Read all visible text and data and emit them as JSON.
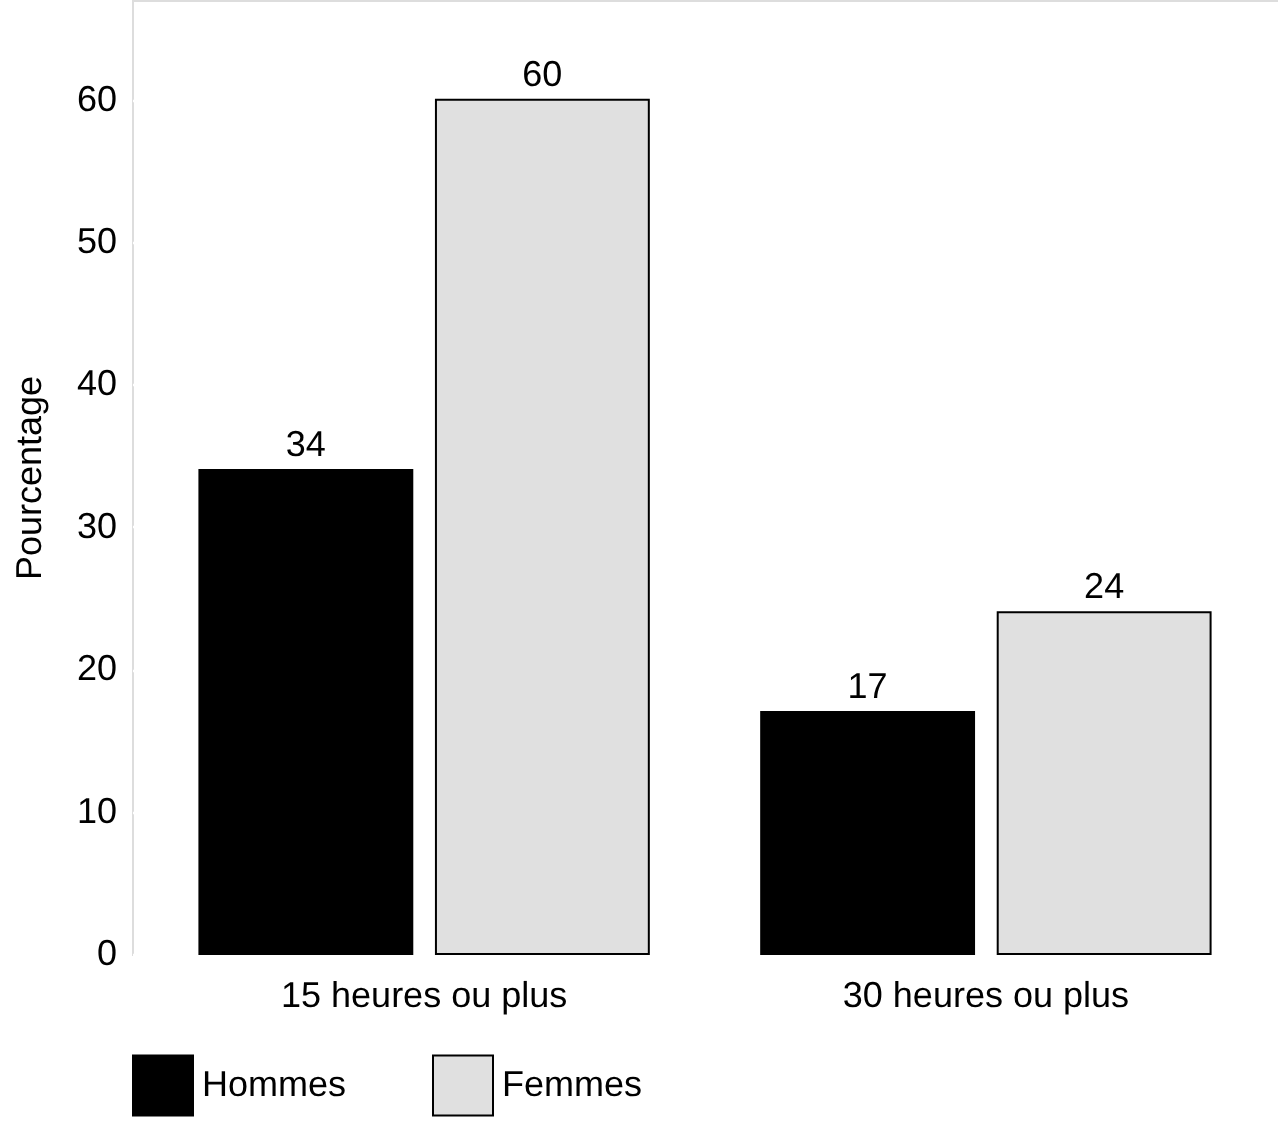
{
  "chart_data": {
    "type": "bar",
    "ylabel": "Pourcentage",
    "categories": [
      "15 heures ou plus",
      "30 heures ou plus"
    ],
    "series": [
      {
        "name": "Hommes",
        "color": "#000000",
        "values": [
          34,
          17
        ]
      },
      {
        "name": "Femmes",
        "color": "#e0e0e0",
        "values": [
          60,
          24
        ]
      }
    ],
    "ylim": [
      0,
      67
    ],
    "yticks": [
      0,
      10,
      20,
      30,
      40,
      50,
      60
    ],
    "grid": "y",
    "legend": "bottom",
    "data_labels": true
  }
}
